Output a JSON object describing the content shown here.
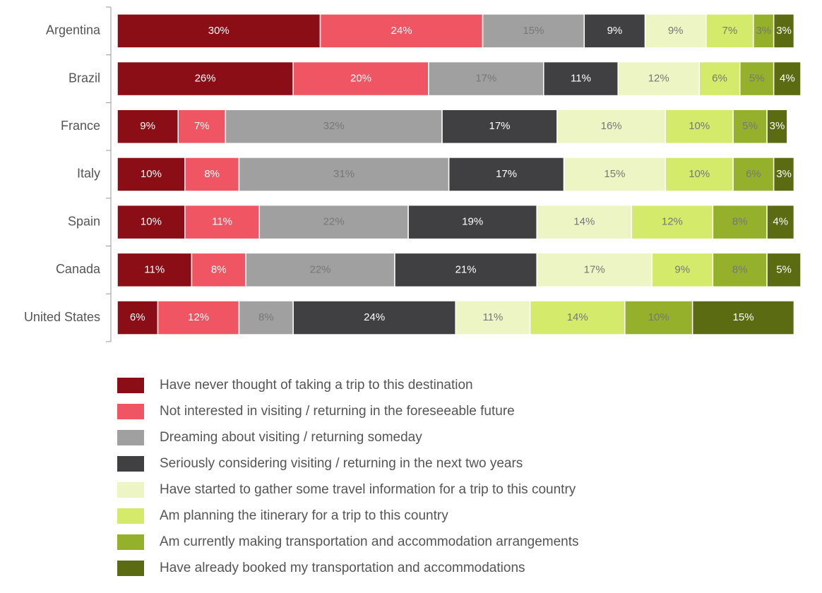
{
  "chart_data": {
    "type": "stacked-bar-horizontal",
    "categories": [
      "Argentina",
      "Brazil",
      "France",
      "Italy",
      "Spain",
      "Canada",
      "United States"
    ],
    "xlim": [
      0,
      101
    ],
    "series": [
      {
        "name": "Have never thought of taking a trip to this destination",
        "color": "#8b0e16",
        "values": [
          30,
          26,
          9,
          10,
          10,
          11,
          6
        ],
        "value_labels": [
          "30%",
          "26%",
          "9%",
          "10%",
          "10%",
          "11%",
          "6%"
        ]
      },
      {
        "name": "Not interested in visiting / returning in the foreseeable future",
        "color": "#f05563",
        "values": [
          24,
          20,
          7,
          8,
          11,
          8,
          12
        ],
        "value_labels": [
          "24%",
          "20%",
          "7%",
          "8%",
          "11%",
          "8%",
          "12%"
        ]
      },
      {
        "name": "Dreaming about visiting / returning someday",
        "color": "#a0a0a0",
        "values": [
          15,
          17,
          32,
          31,
          22,
          22,
          8
        ],
        "value_labels": [
          "15%",
          "17%",
          "32%",
          "31%",
          "22%",
          "22%",
          "8%"
        ]
      },
      {
        "name": "Seriously considering visiting / returning in the next two years",
        "color": "#404042",
        "values": [
          9,
          11,
          17,
          17,
          19,
          21,
          24
        ],
        "value_labels": [
          "9%",
          "11%",
          "17%",
          "17%",
          "19%",
          "21%",
          "24%"
        ]
      },
      {
        "name": "Have started to gather some travel information for a trip to this country",
        "color": "#eef5c4",
        "values": [
          9,
          12,
          16,
          15,
          14,
          17,
          11
        ],
        "value_labels": [
          "9%",
          "12%",
          "16%",
          "15%",
          "14%",
          "17%",
          "11%"
        ]
      },
      {
        "name": "Am planning the itinerary for a trip to this country",
        "color": "#d4ea6a",
        "values": [
          7,
          6,
          10,
          10,
          12,
          9,
          14
        ],
        "value_labels": [
          "7%",
          "6%",
          "10%",
          "10%",
          "12%",
          "9%",
          "14%"
        ]
      },
      {
        "name": "Am currently making transportation and accommodation arrangements",
        "color": "#95b02a",
        "values": [
          3,
          5,
          5,
          6,
          8,
          8,
          10
        ],
        "value_labels": [
          "3%",
          "5%",
          "5%",
          "6%",
          "8%",
          "8%",
          "10%"
        ]
      },
      {
        "name": "Have already booked my transportation and accommodations",
        "color": "#5a6b12",
        "values": [
          3,
          4,
          3,
          3,
          4,
          5,
          15
        ],
        "value_labels": [
          "3%",
          "4%",
          "3%",
          "3%",
          "4%",
          "5%",
          "15%"
        ]
      }
    ]
  }
}
